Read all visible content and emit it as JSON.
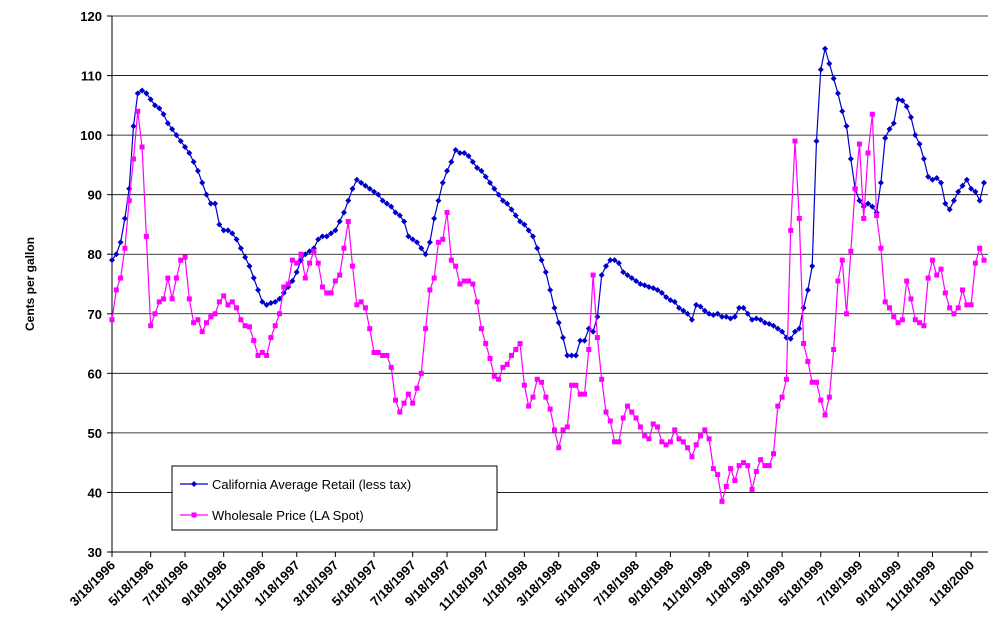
{
  "chart_data": {
    "type": "line",
    "y_label": "Cents per gallon",
    "ylim": [
      30,
      120
    ],
    "yticks": [
      30,
      40,
      50,
      60,
      70,
      80,
      90,
      100,
      110,
      120
    ],
    "grid": true,
    "legend": "lower-left",
    "categories": [
      "3/18/1996",
      null,
      null,
      null,
      null,
      null,
      null,
      null,
      null,
      "5/18/1996",
      null,
      null,
      null,
      null,
      null,
      null,
      null,
      "7/18/1996",
      null,
      null,
      null,
      null,
      null,
      null,
      null,
      null,
      "9/18/1996",
      null,
      null,
      null,
      null,
      null,
      null,
      null,
      null,
      "11/18/1996",
      null,
      null,
      null,
      null,
      null,
      null,
      null,
      "1/18/1997",
      null,
      null,
      null,
      null,
      null,
      null,
      null,
      null,
      "3/18/1997",
      null,
      null,
      null,
      null,
      null,
      null,
      null,
      null,
      "5/18/1997",
      null,
      null,
      null,
      null,
      null,
      null,
      null,
      null,
      "7/18/1997",
      null,
      null,
      null,
      null,
      null,
      null,
      null,
      "9/18/1997",
      null,
      null,
      null,
      null,
      null,
      null,
      null,
      null,
      "11/18/1997",
      null,
      null,
      null,
      null,
      null,
      null,
      null,
      null,
      "1/18/1998",
      null,
      null,
      null,
      null,
      null,
      null,
      null,
      "3/18/1998",
      null,
      null,
      null,
      null,
      null,
      null,
      null,
      null,
      "5/18/1998",
      null,
      null,
      null,
      null,
      null,
      null,
      null,
      null,
      "7/18/1998",
      null,
      null,
      null,
      null,
      null,
      null,
      null,
      "9/18/1998",
      null,
      null,
      null,
      null,
      null,
      null,
      null,
      null,
      "11/18/1998",
      null,
      null,
      null,
      null,
      null,
      null,
      null,
      null,
      "1/18/1999",
      null,
      null,
      null,
      null,
      null,
      null,
      null,
      "3/18/1999",
      null,
      null,
      null,
      null,
      null,
      null,
      null,
      null,
      "5/18/1999",
      null,
      null,
      null,
      null,
      null,
      null,
      null,
      null,
      "7/18/1999",
      null,
      null,
      null,
      null,
      null,
      null,
      null,
      null,
      "9/18/1999",
      null,
      null,
      null,
      null,
      null,
      null,
      null,
      "11/18/1999",
      null,
      null,
      null,
      null,
      null,
      null,
      null,
      null,
      "1/18/2000",
      null,
      null,
      null
    ],
    "series": [
      {
        "name": "California Average Retail (less tax)",
        "color": "#0000cc",
        "marker": "diamond",
        "values": [
          79,
          80,
          82,
          86,
          91,
          101.5,
          107,
          107.5,
          107,
          106,
          105,
          104.5,
          103.5,
          102,
          101,
          100,
          99,
          98,
          97,
          95.5,
          94,
          92,
          90,
          88.5,
          88.5,
          85,
          84,
          84,
          83.5,
          82.5,
          81,
          79.5,
          78,
          76,
          74,
          72,
          71.5,
          71.8,
          72,
          72.5,
          73.5,
          74.5,
          75.5,
          77,
          79,
          80,
          80.5,
          81,
          82.5,
          83,
          83,
          83.5,
          84,
          85.5,
          87,
          89,
          91,
          92.5,
          92,
          91.5,
          91,
          90.5,
          90,
          89,
          88.5,
          88,
          87,
          86.5,
          85.5,
          83,
          82.5,
          82,
          81,
          80,
          82,
          86,
          89,
          92,
          94,
          95.5,
          97.5,
          97,
          97,
          96.5,
          95.5,
          94.5,
          94,
          93,
          92,
          91,
          90,
          89,
          88.5,
          87.5,
          86.5,
          85.5,
          85,
          84,
          83,
          81,
          79,
          77,
          74,
          71,
          68.5,
          66,
          63,
          63,
          63,
          65.5,
          65.5,
          67.5,
          67,
          69.5,
          76.5,
          78,
          79,
          79,
          78.5,
          77,
          76.5,
          76,
          75.5,
          75,
          74.8,
          74.5,
          74.3,
          74,
          73.5,
          72.8,
          72.3,
          72,
          71,
          70.5,
          70,
          69,
          71.5,
          71.2,
          70.5,
          70,
          69.8,
          70,
          69.5,
          69.5,
          69.2,
          69.5,
          71,
          71,
          70,
          69,
          69.2,
          69,
          68.5,
          68.3,
          68,
          67.5,
          67,
          66,
          65.8,
          67,
          67.5,
          71,
          74,
          78,
          99,
          111,
          114.5,
          112,
          109.5,
          107,
          104,
          101.5,
          96,
          91,
          89,
          88,
          88.5,
          88,
          87,
          92,
          99.5,
          101,
          102,
          106,
          105.8,
          104.8,
          103,
          100,
          98.5,
          96,
          93,
          92.5,
          92.8,
          92,
          88.5,
          87.5,
          89,
          90.5,
          91.5,
          92.5,
          91,
          90.5,
          89,
          92
        ]
      },
      {
        "name": "Wholesale Price (LA Spot)",
        "color": "#ff00ff",
        "marker": "square",
        "values": [
          69,
          74,
          76,
          81,
          89,
          96,
          104,
          98,
          83,
          68,
          70,
          72,
          72.5,
          76,
          72.5,
          76,
          79,
          79.5,
          72.5,
          68.5,
          69,
          67,
          68.5,
          69.5,
          70,
          72,
          73,
          71.5,
          72,
          71,
          69,
          68,
          67.8,
          65.5,
          63,
          63.5,
          63,
          66,
          68,
          70,
          74.5,
          75,
          79,
          78.5,
          80,
          76,
          78.5,
          80.5,
          78.5,
          74.5,
          73.5,
          73.5,
          75.5,
          76.5,
          81,
          85.5,
          78,
          71.5,
          72,
          71,
          67.5,
          63.5,
          63.5,
          63,
          63,
          61,
          55.5,
          53.5,
          55,
          56.5,
          55,
          57.5,
          60,
          67.5,
          74,
          76,
          82,
          82.5,
          87,
          79,
          78,
          75,
          75.5,
          75.5,
          75,
          72,
          67.5,
          65,
          62.5,
          59.5,
          59,
          61,
          61.5,
          63,
          64,
          65,
          58,
          54.5,
          56,
          59,
          58.5,
          56,
          54,
          50.5,
          47.5,
          50.5,
          51,
          58,
          58,
          56.5,
          56.5,
          64,
          76.5,
          66,
          59,
          53.5,
          52,
          48.5,
          48.5,
          52.5,
          54.5,
          53.5,
          52.5,
          51,
          49.5,
          49,
          51.5,
          51,
          48.5,
          48,
          48.5,
          50.5,
          49,
          48.5,
          47.5,
          46,
          48,
          49.5,
          50.5,
          49,
          44,
          43,
          38.5,
          41,
          44,
          42,
          44.5,
          45,
          44.5,
          40.5,
          43.5,
          45.5,
          44.5,
          44.5,
          46.5,
          54.5,
          56,
          59,
          84,
          99,
          86,
          65,
          62,
          58.5,
          58.5,
          55.5,
          53,
          56,
          64,
          75.5,
          79,
          70,
          80.5,
          91,
          98.5,
          86,
          97,
          103.5,
          86.5,
          81,
          72,
          71,
          69.5,
          68.5,
          69,
          75.5,
          72.5,
          69,
          68.5,
          68,
          76,
          79,
          76.5,
          77.5,
          73.5,
          71,
          70,
          71,
          74,
          71.5,
          71.5,
          78.5,
          81,
          79
        ]
      }
    ]
  }
}
